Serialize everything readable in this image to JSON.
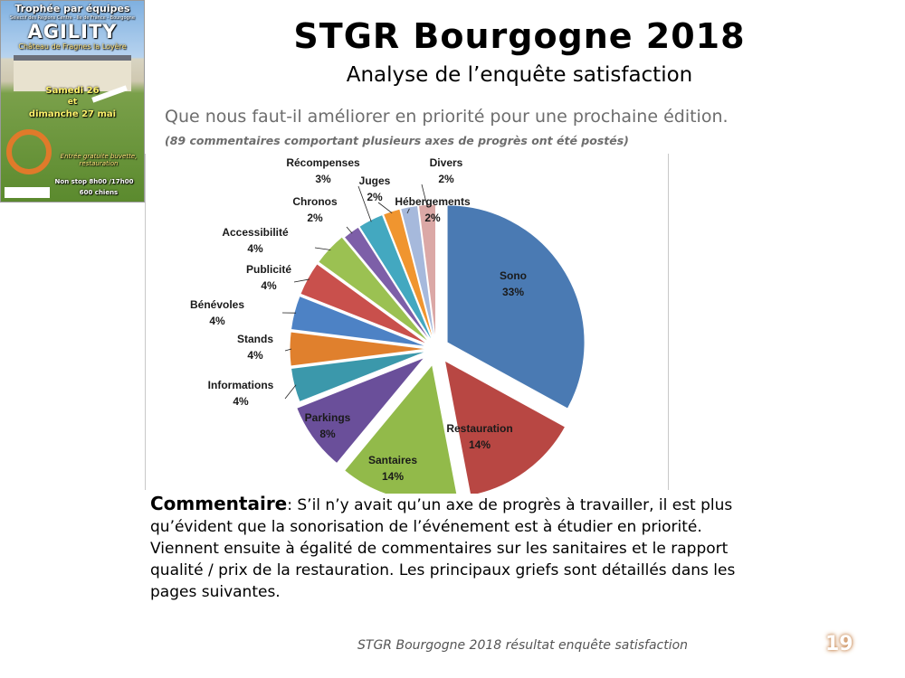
{
  "poster": {
    "title": "Trophée par équipes",
    "subtitle": "Sélectif des Régions Centre - Ile de France - Bourgogne",
    "discipline": "AGILITY",
    "venue": "Château de Fragnes la Loyère",
    "date_line1": "Samedi 26",
    "date_line2": "et",
    "date_line3": "dimanche 27 mai",
    "entry": "Entrée gratuite buvette, restauration",
    "hours": "Non stop 8h00 /17h00",
    "dogs": "600 chiens"
  },
  "title": "STGR Bourgogne 2018",
  "subtitle": "Analyse de l’enquête satisfaction",
  "question": "Que nous faut-il améliorer en priorité pour une prochaine édition.",
  "question_note": "(89 commentaires comportant plusieurs axes de progrès ont été postés)",
  "chart_data": {
    "type": "pie",
    "exploded": true,
    "slices": [
      {
        "label": "Sono",
        "value": 33,
        "pct": "33%",
        "color": "#4a7ab3"
      },
      {
        "label": "Restauration",
        "value": 14,
        "pct": "14%",
        "color": "#b84743"
      },
      {
        "label": "Santaires",
        "value": 14,
        "pct": "14%",
        "color": "#92ba4a"
      },
      {
        "label": "Parkings",
        "value": 8,
        "pct": "8%",
        "color": "#6a4f9a"
      },
      {
        "label": "Informations",
        "value": 4,
        "pct": "4%",
        "color": "#3b98ab"
      },
      {
        "label": "Stands",
        "value": 4,
        "pct": "4%",
        "color": "#e0802d"
      },
      {
        "label": "Bénévoles",
        "value": 4,
        "pct": "4%",
        "color": "#4d82c5"
      },
      {
        "label": "Publicité",
        "value": 4,
        "pct": "4%",
        "color": "#c9504c"
      },
      {
        "label": "Accessibilité",
        "value": 4,
        "pct": "4%",
        "color": "#9bc152"
      },
      {
        "label": "Chronos",
        "value": 2,
        "pct": "2%",
        "color": "#7d5fa8"
      },
      {
        "label": "Récompenses",
        "value": 3,
        "pct": "3%",
        "color": "#43a8c0"
      },
      {
        "label": "Juges",
        "value": 2,
        "pct": "2%",
        "color": "#f0952f"
      },
      {
        "label": "Hébergements",
        "value": 2,
        "pct": "2%",
        "color": "#a6b9dc"
      },
      {
        "label": "Divers",
        "value": 2,
        "pct": "2%",
        "color": "#dba8a6"
      }
    ]
  },
  "comment": {
    "heading": "Commentaire",
    "text": ":  S’il n’y avait qu’un axe de progrès à travailler, il est plus qu’évident que la sonorisation de l’événement est à étudier en priorité. Viennent ensuite à égalité de commentaires sur les sanitaires et le rapport qualité / prix de la restauration. Les principaux griefs sont détaillés dans les pages suivantes."
  },
  "footer": "STGR Bourgogne 2018 résultat enquête satisfaction",
  "page_number": "19"
}
